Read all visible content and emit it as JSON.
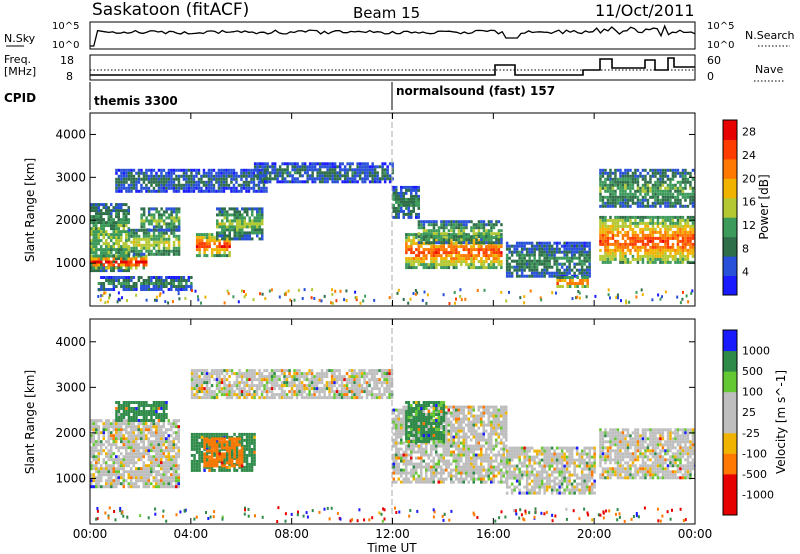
{
  "header": {
    "station": "Saskatoon (fitACF)",
    "beam": "Beam 15",
    "date": "11/Oct/2011"
  },
  "summary": {
    "nsky_label": "N.Sky",
    "nsky_ticks": [
      "10^5",
      "10^0"
    ],
    "nsearch_label": "N.Search",
    "nsearch_ticks": [
      "10^5",
      "10^0"
    ],
    "freq_label_1": "Freq.",
    "freq_label_2": "[MHz]",
    "freq_ticks": [
      "18",
      "8"
    ],
    "nave_label": "Nave",
    "nave_ticks": [
      "60",
      "0"
    ],
    "cpid_label": "CPID",
    "cpid_segments": [
      {
        "name": "themis 3300",
        "start_hour": 0
      },
      {
        "name": "normalsound (fast) 157",
        "start_hour": 12
      }
    ]
  },
  "axes": {
    "x_ticks": [
      "00:00",
      "04:00",
      "08:00",
      "12:00",
      "16:00",
      "20:00",
      "00:00"
    ],
    "x_label": "Time UT",
    "y_label": "Slant Range [km]",
    "y_ticks": [
      "1000",
      "2000",
      "3000",
      "4000"
    ],
    "power_label": "Power [dB]",
    "power_ticks": [
      "4",
      "8",
      "12",
      "16",
      "20",
      "24",
      "28"
    ],
    "velocity_label": "Velocity [m s^-1]",
    "velocity_ticks": [
      "-1000",
      "-500",
      "-100",
      "-25",
      "25",
      "100",
      "500",
      "1000"
    ]
  },
  "colors": {
    "power_scale": [
      "#1a1aff",
      "#2850d8",
      "#2e6e48",
      "#3c9a5a",
      "#b4c832",
      "#f0b400",
      "#ff7800",
      "#ff3c00",
      "#e60000"
    ],
    "velocity_scale": [
      "#e60000",
      "#ff7800",
      "#f0b400",
      "#bebebe",
      "#64c832",
      "#2e8a48",
      "#1a1aff"
    ]
  },
  "chart_data": [
    {
      "type": "heatmap",
      "title": "Power",
      "x_unit": "hour UT",
      "xlim": [
        0,
        24
      ],
      "ylim": [
        0,
        4500
      ],
      "colorbar_range": [
        0,
        30
      ],
      "bands": [
        {
          "h0": 0.0,
          "h1": 1.5,
          "r0": 800,
          "r1": 2400,
          "power": 12
        },
        {
          "h0": 0.0,
          "h1": 2.2,
          "r0": 900,
          "r1": 1200,
          "power": 26
        },
        {
          "h0": 1.5,
          "h1": 3.5,
          "r0": 1200,
          "r1": 1800,
          "power": 14
        },
        {
          "h0": 2.0,
          "h1": 3.5,
          "r0": 1800,
          "r1": 2300,
          "power": 12
        },
        {
          "h0": 4.2,
          "h1": 5.5,
          "r0": 1200,
          "r1": 1700,
          "power": 24
        },
        {
          "h0": 5.0,
          "h1": 6.8,
          "r0": 1600,
          "r1": 2300,
          "power": 12
        },
        {
          "h0": 0.3,
          "h1": 4.0,
          "r0": 420,
          "r1": 700,
          "power": 8
        },
        {
          "h0": 1.0,
          "h1": 7.0,
          "r0": 2700,
          "r1": 3200,
          "power": 6
        },
        {
          "h0": 6.5,
          "h1": 12.0,
          "r0": 2900,
          "r1": 3350,
          "power": 6
        },
        {
          "h0": 12.0,
          "h1": 13.0,
          "r0": 2100,
          "r1": 2800,
          "power": 8
        },
        {
          "h0": 12.5,
          "h1": 16.3,
          "r0": 900,
          "r1": 1700,
          "power": 22
        },
        {
          "h0": 13.0,
          "h1": 16.3,
          "r0": 1500,
          "r1": 2000,
          "power": 12
        },
        {
          "h0": 16.5,
          "h1": 19.8,
          "r0": 700,
          "r1": 1500,
          "power": 8
        },
        {
          "h0": 18.5,
          "h1": 19.7,
          "r0": 480,
          "r1": 700,
          "power": 24
        },
        {
          "h0": 20.2,
          "h1": 24.0,
          "r0": 1000,
          "r1": 2100,
          "power": 22
        },
        {
          "h0": 20.2,
          "h1": 24.0,
          "r0": 2300,
          "r1": 3200,
          "power": 10
        }
      ]
    },
    {
      "type": "heatmap",
      "title": "Velocity",
      "x_unit": "hour UT",
      "xlim": [
        0,
        24
      ],
      "ylim": [
        0,
        4500
      ],
      "colorbar_range": [
        -1000,
        1000
      ],
      "bands": [
        {
          "h0": 0.0,
          "h1": 3.5,
          "r0": 800,
          "r1": 2300,
          "velocity": 0
        },
        {
          "h0": 4.0,
          "h1": 6.5,
          "r0": 1200,
          "r1": 2000,
          "velocity": 200
        },
        {
          "h0": 4.5,
          "h1": 6.0,
          "r0": 1300,
          "r1": 1900,
          "velocity": -300
        },
        {
          "h0": 1.0,
          "h1": 3.0,
          "r0": 2300,
          "r1": 2700,
          "velocity": 300
        },
        {
          "h0": 4.0,
          "h1": 12.0,
          "r0": 2800,
          "r1": 3400,
          "velocity": 0
        },
        {
          "h0": 12.0,
          "h1": 16.5,
          "r0": 900,
          "r1": 2600,
          "velocity": 0
        },
        {
          "h0": 12.5,
          "h1": 14.0,
          "r0": 1800,
          "r1": 2700,
          "velocity": 120
        },
        {
          "h0": 16.5,
          "h1": 20.0,
          "r0": 700,
          "r1": 1700,
          "velocity": 0
        },
        {
          "h0": 20.2,
          "h1": 24.0,
          "r0": 1000,
          "r1": 2100,
          "velocity": 0
        }
      ]
    }
  ]
}
